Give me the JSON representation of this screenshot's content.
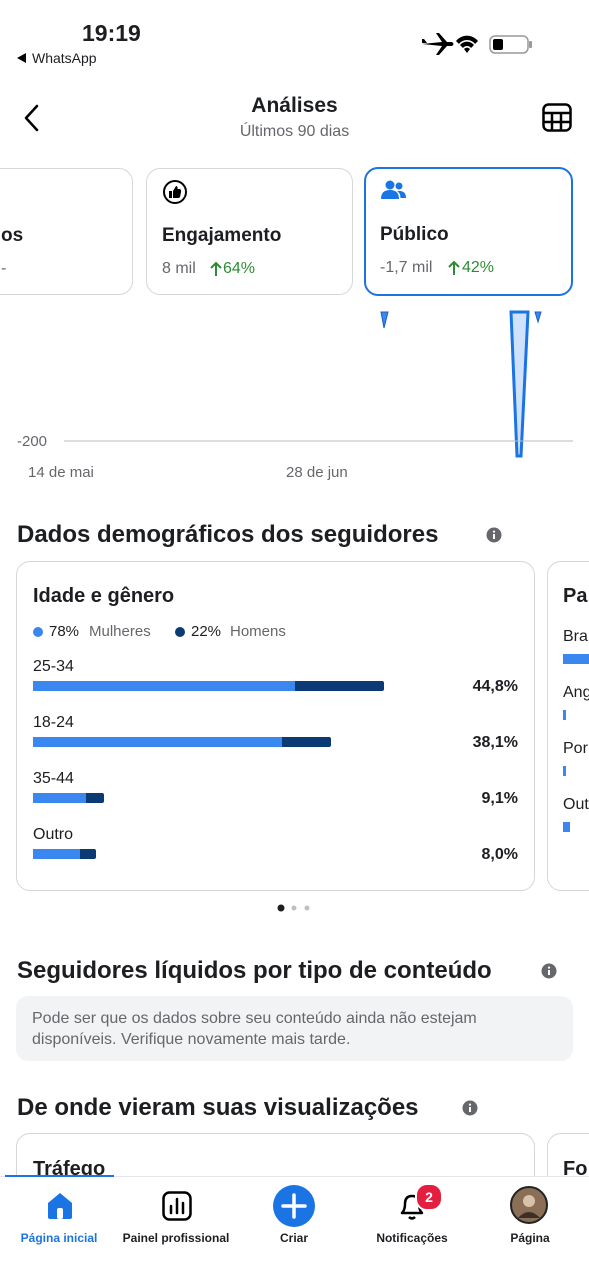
{
  "status_bar": {
    "time": "19:19",
    "back_app": "WhatsApp"
  },
  "header": {
    "title": "Análises",
    "subtitle": "Últimos 90 dias"
  },
  "metric_cards": [
    {
      "label": "os",
      "value": "-"
    },
    {
      "label": "Engajamento",
      "value": "8 mil",
      "change": "64%"
    },
    {
      "label": "Público",
      "value": "-1,7 mil",
      "change": "42%"
    }
  ],
  "trend_chart": {
    "ytick": "-200",
    "xlabels": [
      "14 de mai",
      "28 de jun"
    ]
  },
  "demographics": {
    "title": "Dados demográficos dos seguidores",
    "age_gender": {
      "title": "Idade e gênero",
      "legend": [
        {
          "percent": "78%",
          "label": "Mulheres",
          "color": "#3a87f0"
        },
        {
          "percent": "22%",
          "label": "Homens",
          "color": "#0b3a74"
        }
      ],
      "rows": [
        {
          "label": "25-34",
          "women": 33.5,
          "men": 11.3,
          "value_label": "44,8%"
        },
        {
          "label": "18-24",
          "women": 31.8,
          "men": 6.3,
          "value_label": "38,1%"
        },
        {
          "label": "35-44",
          "women": 6.8,
          "men": 2.3,
          "value_label": "9,1%"
        },
        {
          "label": "Outro",
          "women": 6.0,
          "men": 2.0,
          "value_label": "8,0%"
        }
      ]
    },
    "countries_card": {
      "title": "Pa",
      "rows": [
        "Bra",
        "Ang",
        "Por",
        "Out"
      ]
    }
  },
  "net_followers": {
    "title": "Seguidores líquidos por tipo de conteúdo",
    "notice": "Pode ser que os dados sobre seu conteúdo ainda não estejam disponíveis. Verifique novamente mais tarde."
  },
  "views_source": {
    "title": "De onde vieram suas visualizações",
    "cards": [
      "Tráfego",
      "Fo"
    ]
  },
  "tab_bar": {
    "tabs": [
      "Página inicial",
      "Painel profissional",
      "Criar",
      "Notificações",
      "Página"
    ],
    "badge": "2"
  }
}
